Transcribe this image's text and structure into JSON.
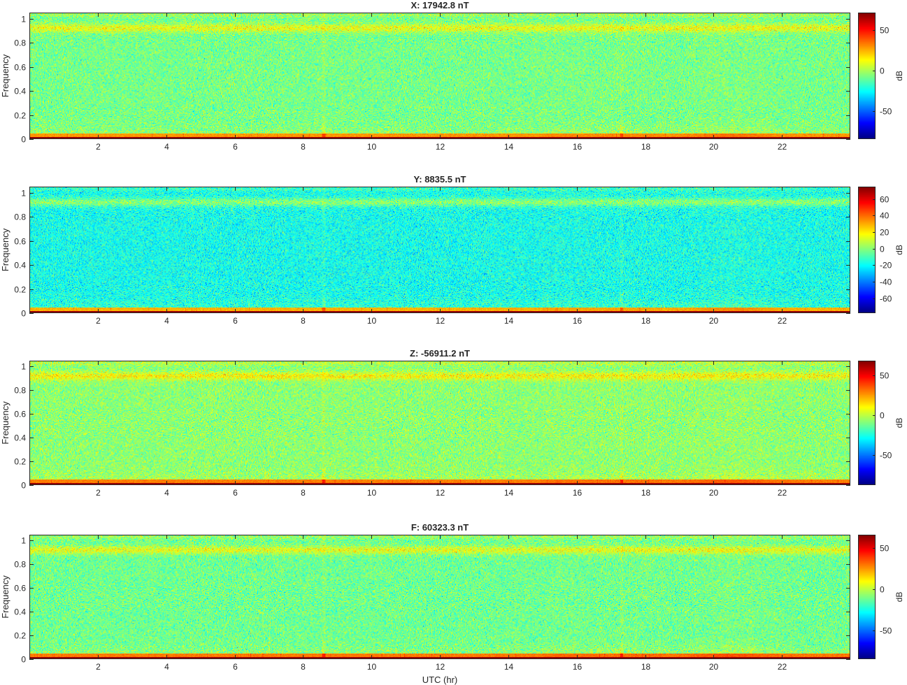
{
  "chart_data": [
    {
      "type": "heatmap",
      "title": "X: 17942.8 nT",
      "xlabel": "",
      "ylabel": "Frequency",
      "xlim": [
        0,
        24
      ],
      "ylim": [
        0,
        1.05
      ],
      "xticks": [
        2,
        4,
        6,
        8,
        10,
        12,
        14,
        16,
        18,
        20,
        22
      ],
      "yticks": [
        0,
        0.2,
        0.4,
        0.6,
        0.8,
        1
      ],
      "colorbar": {
        "label": "dB",
        "range": [
          -85,
          72
        ],
        "ticks": [
          -50,
          0,
          50
        ]
      },
      "colormap": "jet",
      "background_level_db": -8,
      "seed": 11
    },
    {
      "type": "heatmap",
      "title": "Y: 8835.5 nT",
      "xlabel": "",
      "ylabel": "Frequency",
      "xlim": [
        0,
        24
      ],
      "ylim": [
        0,
        1.05
      ],
      "xticks": [
        2,
        4,
        6,
        8,
        10,
        12,
        14,
        16,
        18,
        20,
        22
      ],
      "yticks": [
        0,
        0.2,
        0.4,
        0.6,
        0.8,
        1
      ],
      "colorbar": {
        "label": "dB",
        "range": [
          -78,
          75
        ],
        "ticks": [
          -60,
          -40,
          -20,
          0,
          20,
          40,
          60
        ]
      },
      "colormap": "jet",
      "background_level_db": -18,
      "seed": 23
    },
    {
      "type": "heatmap",
      "title": "Z: -56911.2 nT",
      "xlabel": "",
      "ylabel": "Frequency",
      "xlim": [
        0,
        24
      ],
      "ylim": [
        0,
        1.05
      ],
      "xticks": [
        2,
        4,
        6,
        8,
        10,
        12,
        14,
        16,
        18,
        20,
        22
      ],
      "yticks": [
        0,
        0.2,
        0.4,
        0.6,
        0.8,
        1
      ],
      "colorbar": {
        "label": "dB",
        "range": [
          -88,
          68
        ],
        "ticks": [
          -50,
          0,
          50
        ]
      },
      "colormap": "jet",
      "background_level_db": -8,
      "seed": 37
    },
    {
      "type": "heatmap",
      "title": "F: 60323.3 nT",
      "xlabel": "UTC (hr)",
      "ylabel": "Frequency",
      "xlim": [
        0,
        24
      ],
      "ylim": [
        0,
        1.05
      ],
      "xticks": [
        2,
        4,
        6,
        8,
        10,
        12,
        14,
        16,
        18,
        20,
        22
      ],
      "yticks": [
        0,
        0.2,
        0.4,
        0.6,
        0.8,
        1
      ],
      "colorbar": {
        "label": "dB",
        "range": [
          -85,
          66
        ],
        "ticks": [
          -50,
          0,
          50
        ]
      },
      "colormap": "jet",
      "background_level_db": -12,
      "seed": 53
    }
  ]
}
